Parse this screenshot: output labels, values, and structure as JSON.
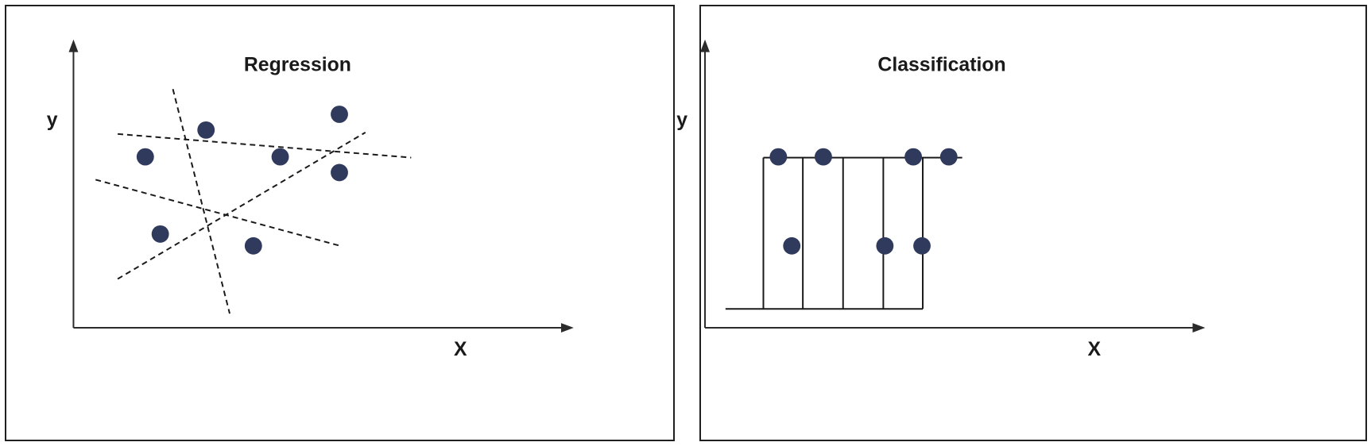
{
  "regression": {
    "title": "Regression",
    "y_label": "y",
    "x_label": "X"
  },
  "classification": {
    "title": "Classification",
    "y_label": "y",
    "x_label": "X"
  },
  "colors": {
    "point": "#2f3a5c",
    "line": "#1a1a1a",
    "border": "#1f1f1f"
  }
}
